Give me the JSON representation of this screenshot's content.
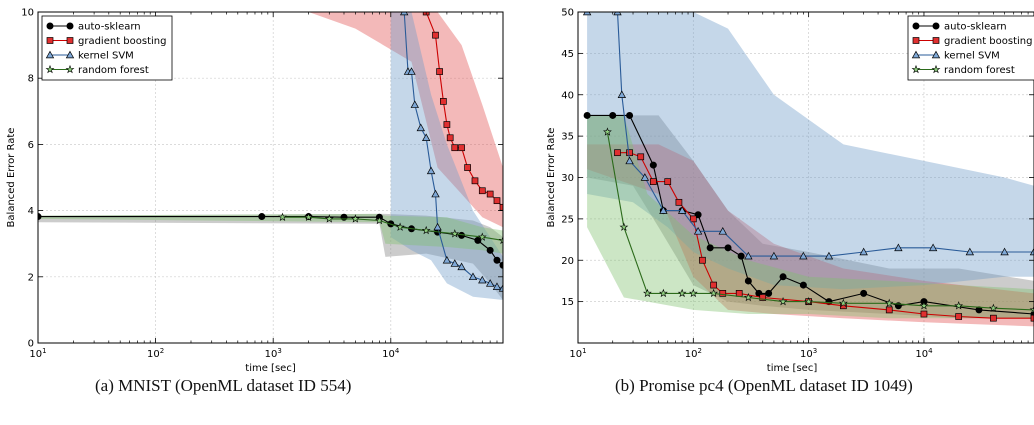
{
  "captions": {
    "a": "(a) MNIST (OpenML dataset ID 554)",
    "b": "(b) Promise pc4 (OpenML dataset ID 1049)"
  },
  "chart_data": [
    {
      "type": "line",
      "title": "",
      "xlabel": "time [sec]",
      "ylabel": "Balanced Error Rate",
      "xscale": "log",
      "xlim": [
        10,
        90000
      ],
      "ylim": [
        0,
        10
      ],
      "xtick_labels": [
        "10^1",
        "10^2",
        "10^3",
        "10^4"
      ],
      "ytick_labels": [
        "0",
        "2",
        "4",
        "6",
        "8",
        "10"
      ],
      "grid": true,
      "legend_position": "top-left",
      "series": [
        {
          "name": "auto-sklearn",
          "color": "#000000",
          "marker": "circle",
          "points": [
            [
              10,
              3.82
            ],
            [
              800,
              3.82
            ],
            [
              2000,
              3.82
            ],
            [
              4000,
              3.8
            ],
            [
              8000,
              3.8
            ],
            [
              10000,
              3.6
            ],
            [
              15000,
              3.45
            ],
            [
              25000,
              3.35
            ],
            [
              40000,
              3.25
            ],
            [
              55000,
              3.1
            ],
            [
              70000,
              2.8
            ],
            [
              80000,
              2.5
            ],
            [
              90000,
              2.35
            ]
          ],
          "band": [
            [
              10,
              3.65,
              3.85
            ],
            [
              8000,
              3.6,
              3.9
            ],
            [
              9000,
              2.6,
              3.9
            ],
            [
              20000,
              2.7,
              3.85
            ],
            [
              50000,
              2.4,
              3.7
            ],
            [
              70000,
              1.8,
              3.5
            ],
            [
              90000,
              1.3,
              3.2
            ]
          ]
        },
        {
          "name": "gradient boosting",
          "color": "#cc0000",
          "fill": "#e05050",
          "marker": "square",
          "points": [
            [
              20000,
              10
            ],
            [
              24000,
              9.3
            ],
            [
              26000,
              8.2
            ],
            [
              28000,
              7.3
            ],
            [
              30000,
              6.6
            ],
            [
              32000,
              6.2
            ],
            [
              35000,
              5.9
            ],
            [
              40000,
              5.9
            ],
            [
              45000,
              5.3
            ],
            [
              52000,
              4.9
            ],
            [
              60000,
              4.6
            ],
            [
              70000,
              4.5
            ],
            [
              80000,
              4.3
            ],
            [
              90000,
              4.1
            ]
          ],
          "band": [
            [
              2000,
              10,
              10
            ],
            [
              5000,
              9.5,
              10
            ],
            [
              15000,
              8.5,
              10
            ],
            [
              25000,
              5.3,
              10
            ],
            [
              40000,
              4.5,
              9.0
            ],
            [
              60000,
              3.8,
              7.2
            ],
            [
              90000,
              3.5,
              5.3
            ]
          ]
        },
        {
          "name": "kernel SVM",
          "color": "#2a5b98",
          "fill": "#6e9cc8",
          "marker": "triangle",
          "points": [
            [
              13000,
              10
            ],
            [
              14000,
              8.2
            ],
            [
              15000,
              8.2
            ],
            [
              16000,
              7.2
            ],
            [
              18000,
              6.5
            ],
            [
              20000,
              6.2
            ],
            [
              22000,
              5.2
            ],
            [
              24000,
              4.5
            ],
            [
              25000,
              3.5
            ],
            [
              30000,
              2.5
            ],
            [
              35000,
              2.4
            ],
            [
              40000,
              2.3
            ],
            [
              50000,
              2.0
            ],
            [
              60000,
              1.9
            ],
            [
              70000,
              1.8
            ],
            [
              80000,
              1.7
            ],
            [
              90000,
              1.65
            ]
          ],
          "band": [
            [
              10000,
              3.2,
              10
            ],
            [
              15000,
              2.8,
              10
            ],
            [
              22000,
              2.5,
              7.5
            ],
            [
              30000,
              1.8,
              6.0
            ],
            [
              50000,
              1.4,
              4.0
            ],
            [
              90000,
              1.3,
              2.6
            ]
          ]
        },
        {
          "name": "random forest",
          "color": "#2b6a1a",
          "fill": "#7fc06e",
          "marker": "star",
          "points": [
            [
              1200,
              3.8
            ],
            [
              2000,
              3.8
            ],
            [
              3000,
              3.75
            ],
            [
              5000,
              3.75
            ],
            [
              8000,
              3.7
            ],
            [
              12000,
              3.5
            ],
            [
              20000,
              3.4
            ],
            [
              35000,
              3.3
            ],
            [
              60000,
              3.2
            ],
            [
              90000,
              3.1
            ]
          ],
          "band": [
            [
              10,
              3.75,
              3.85
            ],
            [
              8000,
              3.65,
              3.9
            ],
            [
              9000,
              3.0,
              3.85
            ],
            [
              30000,
              2.9,
              3.8
            ],
            [
              60000,
              2.8,
              3.5
            ],
            [
              90000,
              2.7,
              3.4
            ]
          ]
        }
      ]
    },
    {
      "type": "line",
      "title": "",
      "xlabel": "time [sec]",
      "ylabel": "Balanced Error Rate",
      "xscale": "log",
      "xlim": [
        10,
        90000
      ],
      "ylim": [
        10,
        50
      ],
      "xtick_labels": [
        "10^1",
        "10^2",
        "10^3",
        "10^4"
      ],
      "ytick_labels": [
        "15",
        "20",
        "25",
        "30",
        "35",
        "40",
        "45",
        "50"
      ],
      "grid": true,
      "legend_position": "top-right",
      "series": [
        {
          "name": "auto-sklearn",
          "color": "#000000",
          "marker": "circle",
          "points": [
            [
              12,
              37.5
            ],
            [
              20,
              37.5
            ],
            [
              28,
              37.5
            ],
            [
              45,
              31.5
            ],
            [
              55,
              26
            ],
            [
              80,
              26
            ],
            [
              110,
              25.5
            ],
            [
              140,
              21.5
            ],
            [
              200,
              21.5
            ],
            [
              260,
              20.5
            ],
            [
              300,
              17.5
            ],
            [
              370,
              16
            ],
            [
              450,
              16
            ],
            [
              600,
              18
            ],
            [
              900,
              17
            ],
            [
              1500,
              15
            ],
            [
              3000,
              16
            ],
            [
              6000,
              14.5
            ],
            [
              10000,
              15
            ],
            [
              30000,
              14
            ],
            [
              90000,
              13.5
            ]
          ],
          "band": [
            [
              12,
              30,
              37.5
            ],
            [
              30,
              29,
              37.5
            ],
            [
              50,
              24,
              37.5
            ],
            [
              100,
              17,
              32
            ],
            [
              200,
              15,
              26
            ],
            [
              400,
              14.5,
              22
            ],
            [
              1000,
              14,
              21
            ],
            [
              5000,
              13.5,
              19
            ],
            [
              20000,
              13,
              19
            ],
            [
              90000,
              13,
              17.5
            ]
          ]
        },
        {
          "name": "gradient boosting",
          "color": "#cc0000",
          "fill": "#e05050",
          "marker": "square",
          "points": [
            [
              22,
              33
            ],
            [
              28,
              33
            ],
            [
              35,
              32.5
            ],
            [
              45,
              29.5
            ],
            [
              60,
              29.5
            ],
            [
              75,
              27
            ],
            [
              100,
              25
            ],
            [
              120,
              20
            ],
            [
              150,
              17
            ],
            [
              180,
              16
            ],
            [
              250,
              16
            ],
            [
              400,
              15.5
            ],
            [
              1000,
              15
            ],
            [
              2000,
              14.5
            ],
            [
              5000,
              14
            ],
            [
              10000,
              13.5
            ],
            [
              20000,
              13.2
            ],
            [
              40000,
              13
            ],
            [
              90000,
              13
            ]
          ],
          "band": [
            [
              12,
              31,
              34
            ],
            [
              50,
              28,
              34
            ],
            [
              100,
              18,
              32
            ],
            [
              200,
              14,
              26
            ],
            [
              500,
              13.5,
              22
            ],
            [
              2000,
              13,
              19
            ],
            [
              10000,
              12.5,
              17.5
            ],
            [
              90000,
              12,
              16
            ]
          ]
        },
        {
          "name": "kernel SVM",
          "color": "#2a5b98",
          "fill": "#6e9cc8",
          "marker": "triangle",
          "points": [
            [
              12,
              50
            ],
            [
              22,
              50
            ],
            [
              24,
              40
            ],
            [
              28,
              32
            ],
            [
              38,
              30
            ],
            [
              55,
              26
            ],
            [
              80,
              26
            ],
            [
              110,
              23.5
            ],
            [
              180,
              23.5
            ],
            [
              300,
              20.5
            ],
            [
              500,
              20.5
            ],
            [
              900,
              20.5
            ],
            [
              1500,
              20.5
            ],
            [
              3000,
              21
            ],
            [
              6000,
              21.5
            ],
            [
              12000,
              21.5
            ],
            [
              25000,
              21
            ],
            [
              50000,
              21
            ],
            [
              90000,
              21
            ]
          ],
          "band": [
            [
              12,
              28,
              50
            ],
            [
              30,
              27,
              50
            ],
            [
              60,
              24,
              50
            ],
            [
              100,
              21,
              50
            ],
            [
              200,
              19,
              48
            ],
            [
              500,
              17,
              40
            ],
            [
              2000,
              16.5,
              34
            ],
            [
              10000,
              17,
              32
            ],
            [
              50000,
              18,
              30
            ],
            [
              90000,
              18,
              29
            ]
          ]
        },
        {
          "name": "random forest",
          "color": "#2b6a1a",
          "fill": "#7fc06e",
          "marker": "star",
          "points": [
            [
              18,
              35.5
            ],
            [
              25,
              24
            ],
            [
              40,
              16
            ],
            [
              55,
              16
            ],
            [
              80,
              16
            ],
            [
              100,
              16
            ],
            [
              150,
              16
            ],
            [
              300,
              15.5
            ],
            [
              600,
              15
            ],
            [
              1000,
              15
            ],
            [
              2000,
              14.8
            ],
            [
              5000,
              14.8
            ],
            [
              10000,
              14.5
            ],
            [
              20000,
              14.5
            ],
            [
              40000,
              14.2
            ],
            [
              90000,
              14
            ]
          ],
          "band": [
            [
              12,
              24,
              37.5
            ],
            [
              25,
              15.5,
              37.5
            ],
            [
              40,
              15,
              28
            ],
            [
              100,
              14,
              23
            ],
            [
              300,
              13.5,
              20
            ],
            [
              1000,
              13.5,
              18
            ],
            [
              5000,
              13,
              17.5
            ],
            [
              20000,
              13,
              17
            ],
            [
              90000,
              13,
              16.5
            ]
          ]
        }
      ]
    }
  ]
}
